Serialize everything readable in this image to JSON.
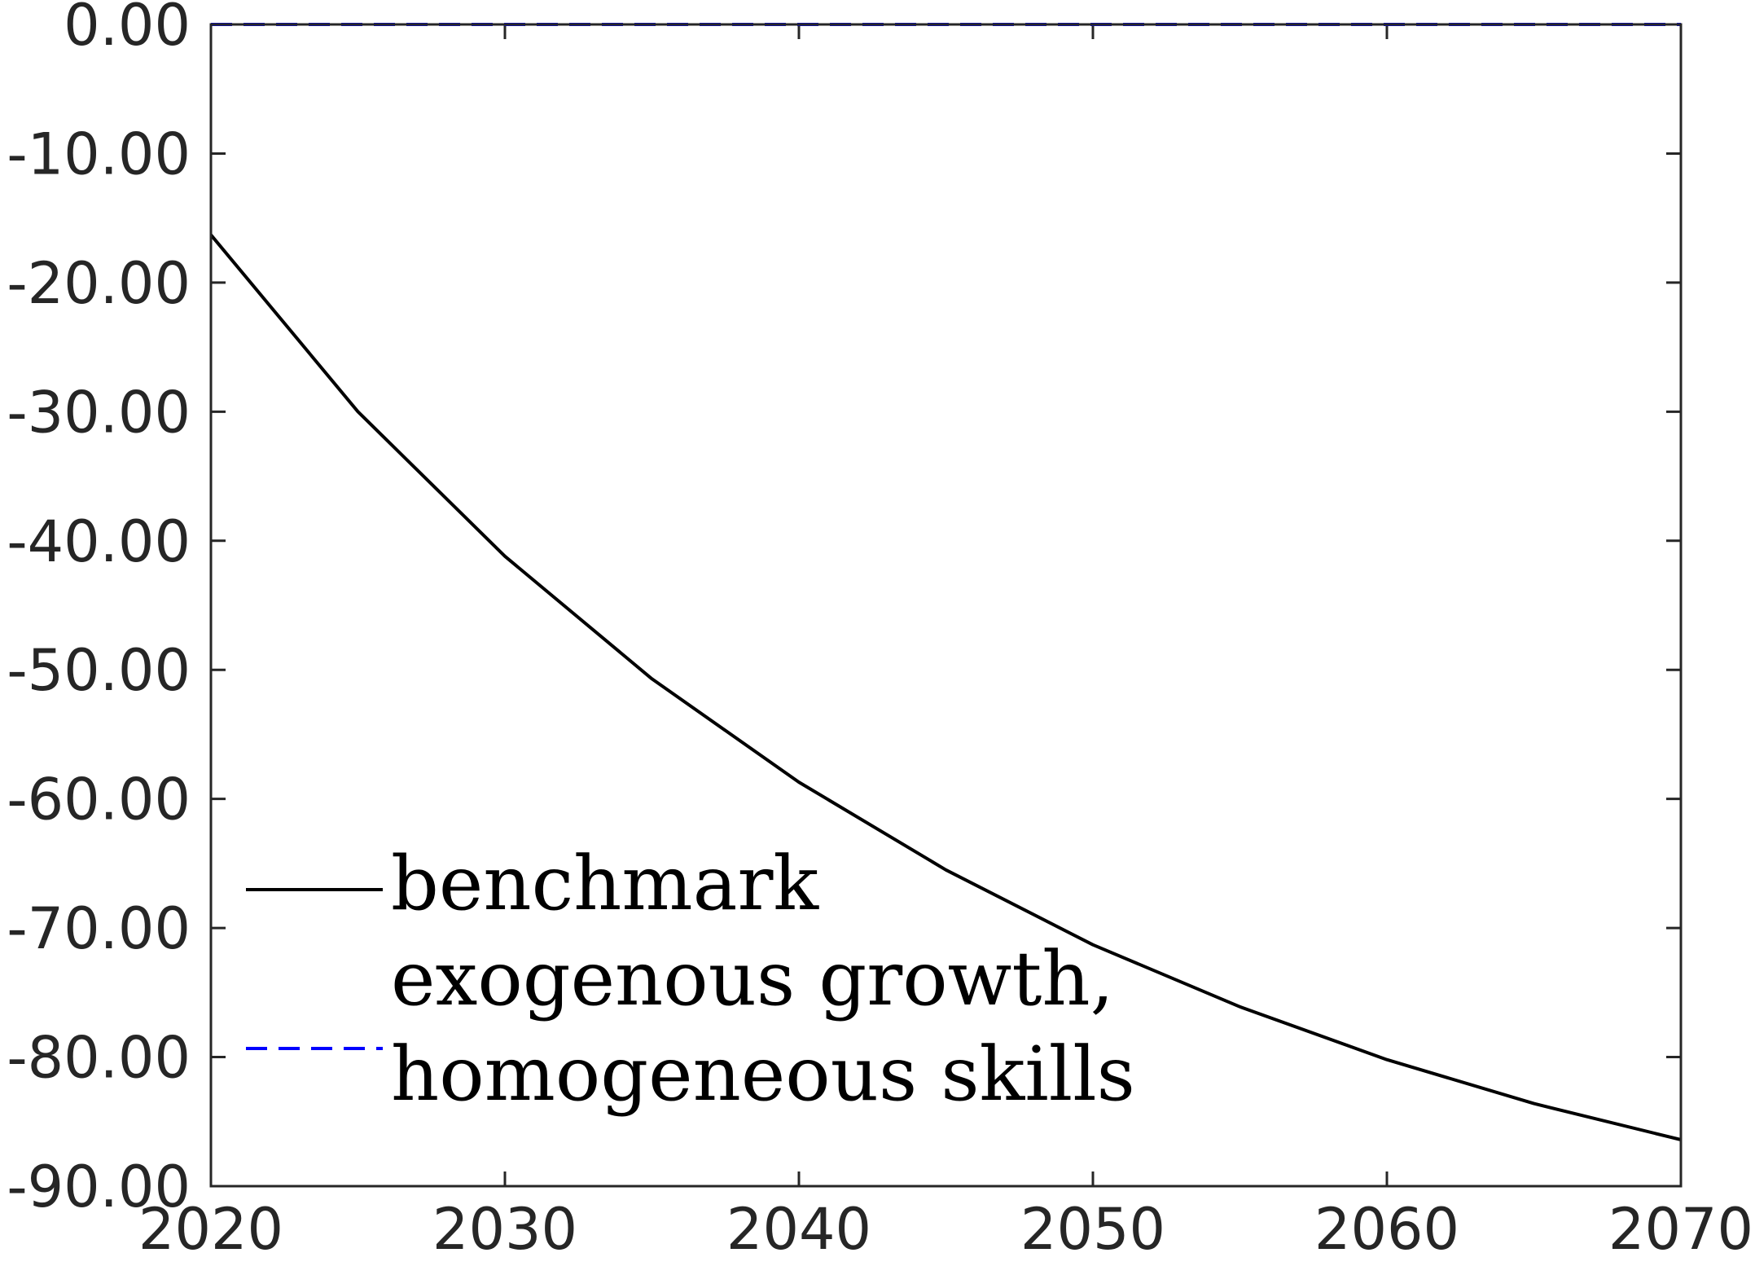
{
  "chart_data": {
    "type": "line",
    "title": "",
    "xlabel": "",
    "ylabel": "",
    "xlim": [
      2020,
      2070
    ],
    "ylim": [
      -90,
      0
    ],
    "x_ticks": [
      2020,
      2030,
      2040,
      2050,
      2060,
      2070
    ],
    "x_tick_labels": [
      "2020",
      "2030",
      "2040",
      "2050",
      "2060",
      "2070"
    ],
    "y_ticks": [
      0,
      -10,
      -20,
      -30,
      -40,
      -50,
      -60,
      -70,
      -80,
      -90
    ],
    "y_tick_labels": [
      "0.00",
      "-10.00",
      "-20.00",
      "-30.00",
      "-40.00",
      "-50.00",
      "-60.00",
      "-70.00",
      "-80.00",
      "-90.00"
    ],
    "grid": false,
    "legend_position": "bottom-left",
    "x": [
      2020,
      2025,
      2030,
      2035,
      2040,
      2045,
      2050,
      2055,
      2060,
      2065,
      2070
    ],
    "series": [
      {
        "legend_lines": [
          "benchmark"
        ],
        "color": "#000000",
        "style": "solid",
        "values": [
          -16.3,
          -30.0,
          -41.2,
          -50.7,
          -58.7,
          -65.5,
          -71.3,
          -76.1,
          -80.2,
          -83.6,
          -86.4
        ]
      },
      {
        "legend_lines": [
          "exogenous growth,",
          "homogeneous skills"
        ],
        "color": "#0000ff",
        "style": "dashed",
        "values": [
          0,
          0,
          0,
          0,
          0,
          0,
          0,
          0,
          0,
          0,
          0
        ]
      }
    ]
  }
}
